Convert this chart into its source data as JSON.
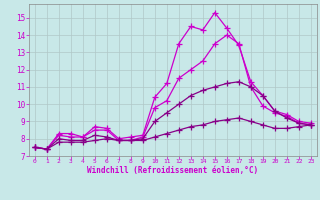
{
  "xlabel": "Windchill (Refroidissement éolien,°C)",
  "background_color": "#c8e8e8",
  "grid_color": "#b0c8c8",
  "line_color": "#cc00cc",
  "line_color2": "#880088",
  "xlim": [
    -0.5,
    23.5
  ],
  "ylim": [
    7,
    15.8
  ],
  "xticks": [
    0,
    1,
    2,
    3,
    4,
    5,
    6,
    7,
    8,
    9,
    10,
    11,
    12,
    13,
    14,
    15,
    16,
    17,
    18,
    19,
    20,
    21,
    22,
    23
  ],
  "yticks": [
    7,
    8,
    9,
    10,
    11,
    12,
    13,
    14,
    15
  ],
  "line1_y": [
    7.5,
    7.4,
    8.3,
    8.3,
    8.1,
    8.7,
    8.6,
    8.0,
    8.1,
    8.2,
    10.4,
    11.2,
    13.5,
    14.5,
    14.3,
    15.3,
    14.4,
    13.4,
    11.3,
    10.5,
    9.6,
    9.4,
    9.0,
    8.9
  ],
  "line2_y": [
    7.5,
    7.4,
    8.2,
    8.1,
    8.1,
    8.5,
    8.5,
    7.9,
    7.9,
    8.1,
    9.8,
    10.2,
    11.5,
    12.0,
    12.5,
    13.5,
    14.0,
    13.5,
    11.0,
    9.9,
    9.5,
    9.3,
    8.9,
    8.8
  ],
  "line3_y": [
    7.5,
    7.4,
    8.0,
    7.9,
    7.9,
    8.2,
    8.1,
    7.9,
    7.9,
    8.0,
    9.0,
    9.5,
    10.0,
    10.5,
    10.8,
    11.0,
    11.2,
    11.3,
    11.0,
    10.5,
    9.6,
    9.2,
    8.9,
    8.8
  ],
  "line4_y": [
    7.5,
    7.4,
    7.8,
    7.8,
    7.8,
    7.9,
    8.0,
    7.9,
    7.9,
    7.9,
    8.1,
    8.3,
    8.5,
    8.7,
    8.8,
    9.0,
    9.1,
    9.2,
    9.0,
    8.8,
    8.6,
    8.6,
    8.7,
    8.8
  ]
}
